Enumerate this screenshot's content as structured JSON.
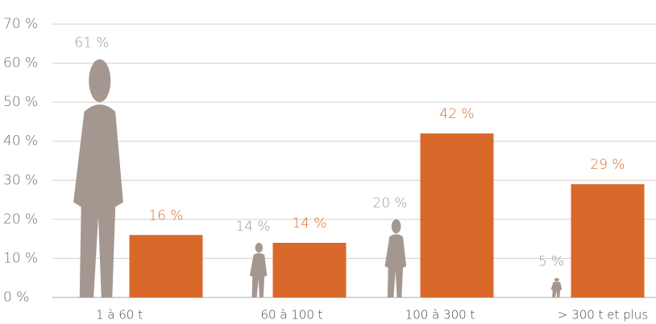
{
  "chart_data": {
    "type": "bar",
    "categories": [
      "1 à 60 t",
      "60 à 100 t",
      "100 à 300 t",
      "> 300 t et plus"
    ],
    "series": [
      {
        "color": "#a39790",
        "values": [
          61,
          14,
          20,
          5
        ],
        "value_labels": [
          "61 %",
          "14 %",
          "20 %",
          "5 %"
        ]
      },
      {
        "color": "#d9692a",
        "values": [
          16,
          14,
          42,
          29
        ],
        "value_labels": [
          "16 %",
          "14 %",
          "42 %",
          "29 %"
        ]
      }
    ],
    "ylim": [
      0,
      70
    ],
    "yticks": [
      {
        "value": 0,
        "label": "0 %"
      },
      {
        "value": 10,
        "label": "10 %"
      },
      {
        "value": 20,
        "label": "20 %"
      },
      {
        "value": 30,
        "label": "30 %"
      },
      {
        "value": 40,
        "label": "40 %"
      },
      {
        "value": 50,
        "label": "50 %"
      },
      {
        "value": 60,
        "label": "60 %"
      },
      {
        "value": 70,
        "label": "70 %"
      }
    ],
    "grid": true
  }
}
